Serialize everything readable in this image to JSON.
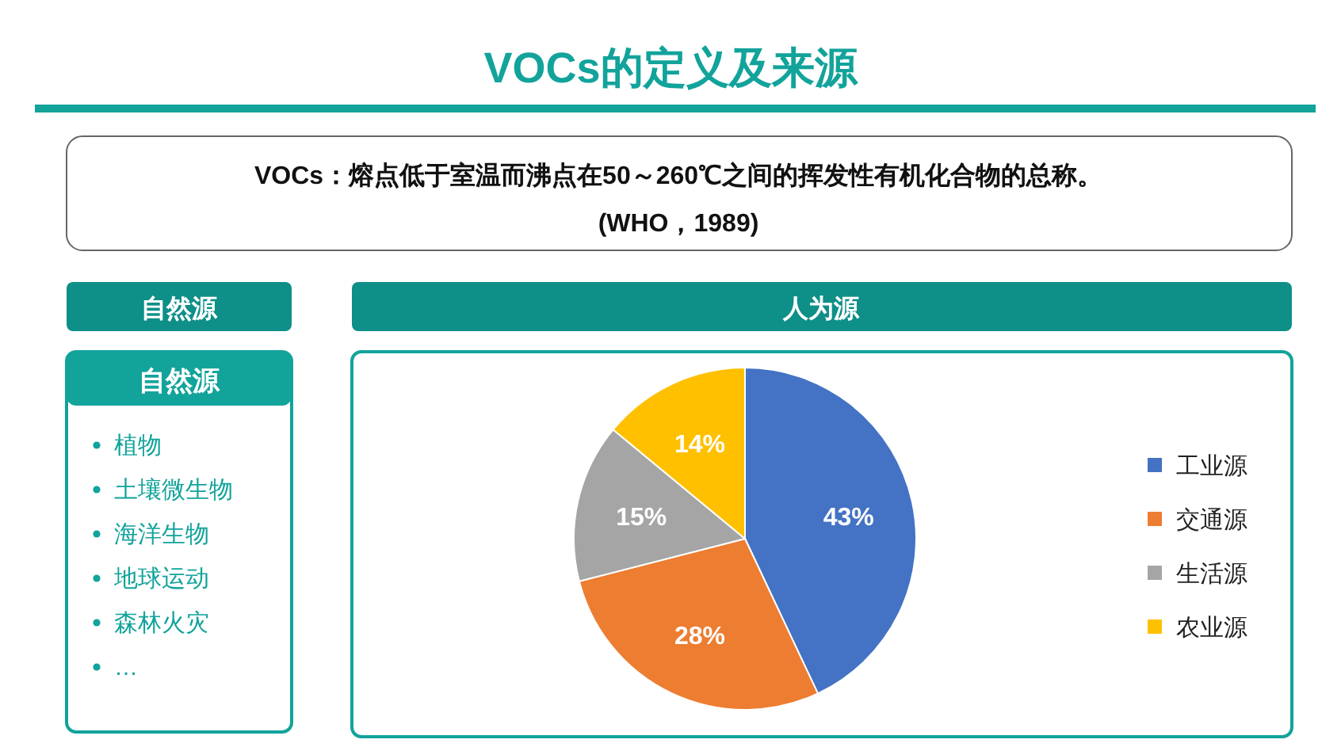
{
  "chart_data": [
    {
      "type": "other",
      "title": "VOCs的定义及来源",
      "annotations": [
        "VOCs：熔点低于室温而沸点在50～260℃之间的挥发性有机化合物的总称。",
        "(WHO，1989)"
      ]
    },
    {
      "type": "other",
      "title": "自然源",
      "subtitle": "自然源",
      "annotations": [
        "植物",
        "土壤微生物",
        "海洋生物",
        "地球运动",
        "森林火灾",
        "…"
      ]
    },
    {
      "type": "pie",
      "title": "人为源",
      "categories": [
        "工业源",
        "交通源",
        "生活源",
        "农业源"
      ],
      "values": [
        43,
        28,
        15,
        14
      ],
      "colors": [
        "#4472c4",
        "#ed7d31",
        "#a5a5a5",
        "#ffc000"
      ],
      "value_labels": [
        "43%",
        "28%",
        "15%",
        "14%"
      ],
      "legend": "right"
    }
  ]
}
